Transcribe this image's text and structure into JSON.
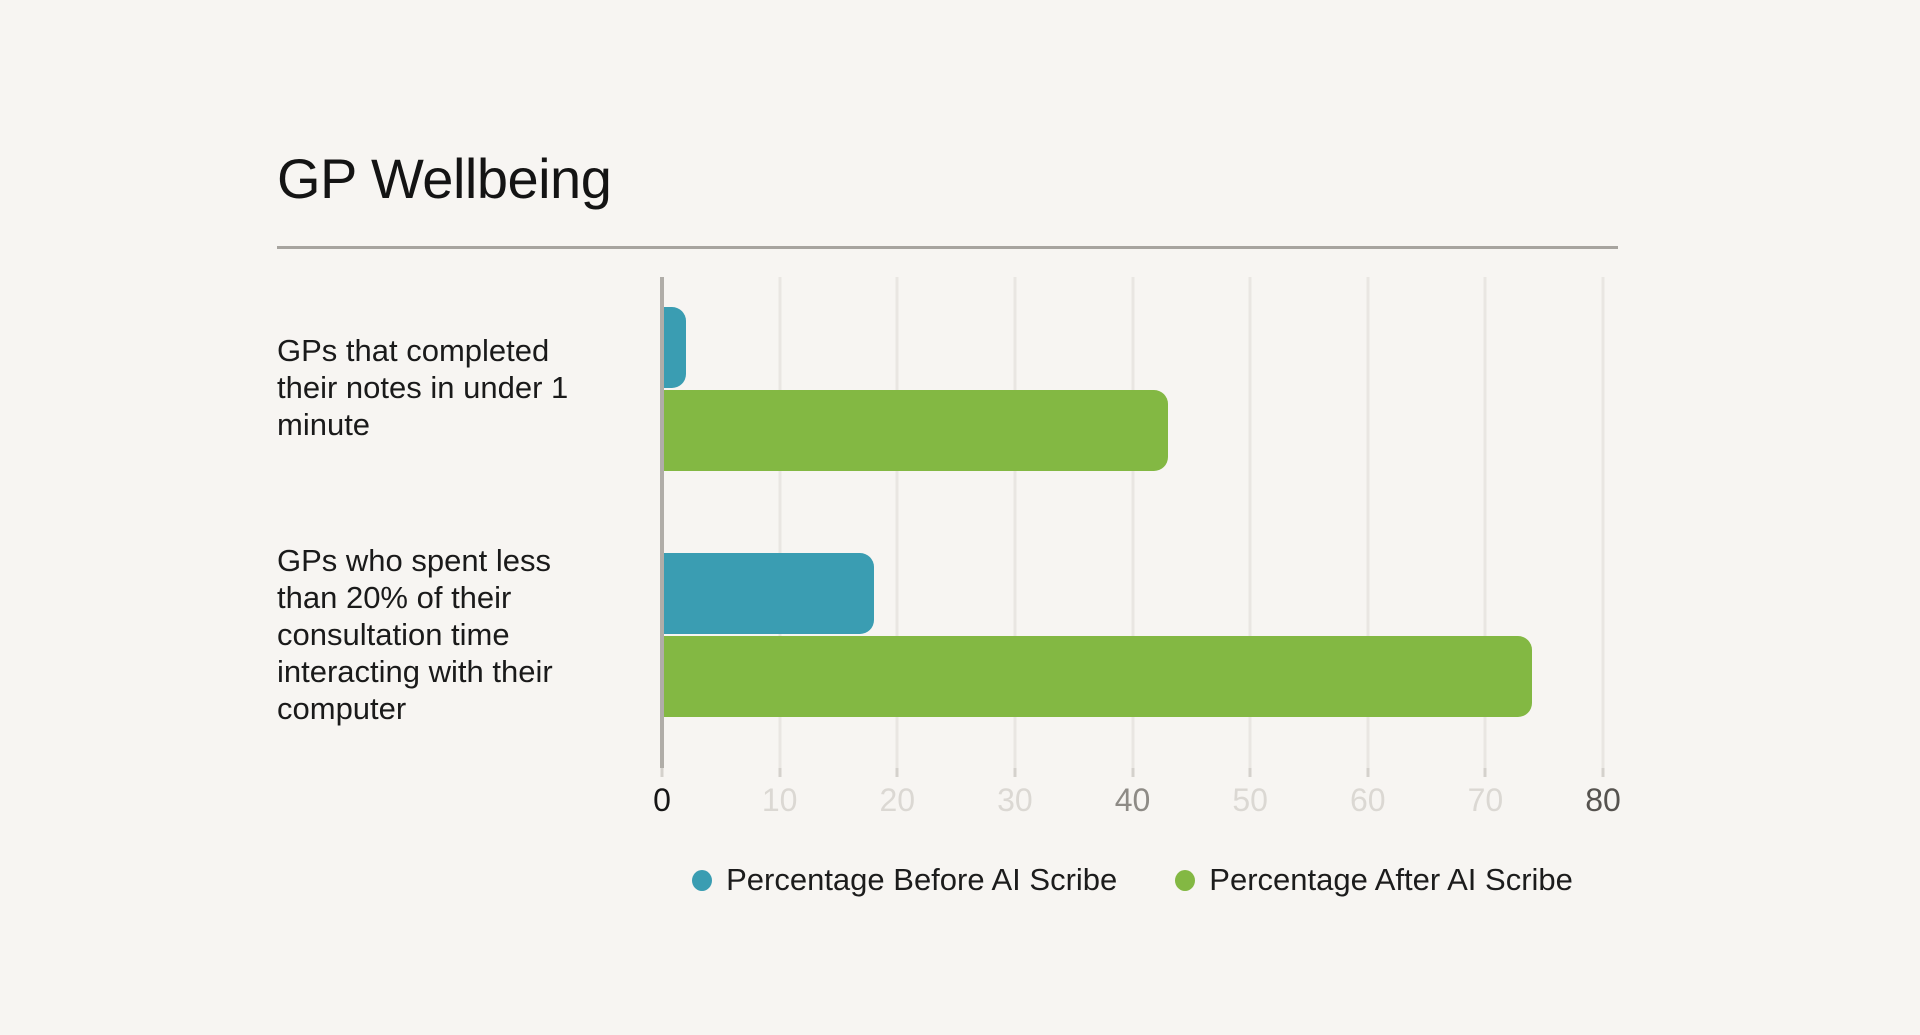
{
  "colors": {
    "background": "#F7F5F2",
    "gridline": "#E9E6E2",
    "axis_line": "#B0ADA8",
    "divider": "#A7A49F",
    "text": "#141414",
    "series_before": "#3A9DB2",
    "series_after": "#83B843"
  },
  "chart_data": {
    "type": "bar",
    "orientation": "horizontal",
    "title": "GP Wellbeing",
    "categories": [
      "GPs that completed their notes in under 1 minute",
      "GPs who spent less than 20% of their consultation time interacting with their computer"
    ],
    "series": [
      {
        "name": "Percentage Before AI Scribe",
        "color": "#3A9DB2",
        "values": [
          2,
          18
        ]
      },
      {
        "name": "Percentage After AI Scribe",
        "color": "#83B843",
        "values": [
          43,
          74
        ]
      }
    ],
    "xlim": [
      0,
      80
    ],
    "x_ticks": [
      "0",
      "10",
      "20",
      "30",
      "40",
      "50",
      "60",
      "70",
      "80"
    ],
    "grid": true,
    "legend_position": "bottom-center"
  },
  "category_labels": [
    {
      "lines": [
        "GPs that completed",
        "their notes in under 1",
        "minute"
      ]
    },
    {
      "lines": [
        "GPs who spent less",
        "than 20% of their",
        "consultation time",
        "interacting with their",
        "computer"
      ]
    }
  ],
  "x_axis": {
    "ticks": [
      {
        "label": "0",
        "color": "#161616"
      },
      {
        "label": "10",
        "color": "#DBD8D3"
      },
      {
        "label": "20",
        "color": "#DBD8D3"
      },
      {
        "label": "30",
        "color": "#DBD8D3"
      },
      {
        "label": "40",
        "color": "#8E8B86"
      },
      {
        "label": "50",
        "color": "#DBD8D3"
      },
      {
        "label": "60",
        "color": "#DBD8D3"
      },
      {
        "label": "70",
        "color": "#DBD8D3"
      },
      {
        "label": "80",
        "color": "#56534F"
      }
    ]
  },
  "legend": {
    "items": [
      {
        "label": "Percentage Before AI Scribe",
        "color": "#3A9DB2"
      },
      {
        "label": "Percentage After AI Scribe",
        "color": "#83B843"
      }
    ]
  }
}
